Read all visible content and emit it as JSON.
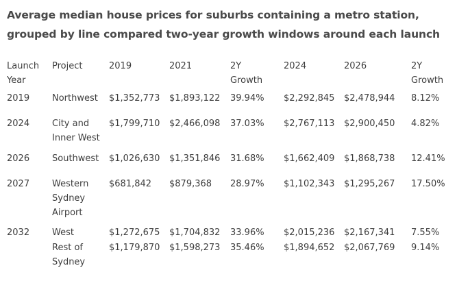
{
  "title": "Average median house prices for suburbs containing a metro station, grouped by line compared two-year growth windows around each launch",
  "header": {
    "launch_year": "Launch Year",
    "project": "Project",
    "y2019": "2019",
    "y2021": "2021",
    "growth1": "2Y Growth",
    "y2024": "2024",
    "y2026": "2026",
    "growth2": "2Y Growth"
  },
  "rows": [
    {
      "launch_year": "2019",
      "project": "Northwest",
      "v2019": "$1,352,773",
      "v2021": "$1,893,122",
      "growth1": "39.94%",
      "v2024": "$2,292,845",
      "v2026": "$2,478,944",
      "growth2": "8.12%"
    },
    {
      "launch_year": "2024",
      "project": "City and Inner West",
      "v2019": "$1,799,710",
      "v2021": "$2,466,098",
      "growth1": "37.03%",
      "v2024": "$2,767,113",
      "v2026": "$2,900,450",
      "growth2": "4.82%"
    },
    {
      "launch_year": "2026",
      "project": "Southwest",
      "v2019": "$1,026,630",
      "v2021": "$1,351,846",
      "growth1": "31.68%",
      "v2024": "$1,662,409",
      "v2026": "$1,868,738",
      "growth2": "12.41%"
    },
    {
      "launch_year": "2027",
      "project": "Western Sydney Airport",
      "v2019": "$681,842",
      "v2021": "$879,368",
      "growth1": "28.97%",
      "v2024": "$1,102,343",
      "v2026": "$1,295,267",
      "growth2": "17.50%"
    },
    {
      "launch_year": "2032",
      "project": "West",
      "v2019": "$1,272,675",
      "v2021": "$1,704,832",
      "growth1": "33.96%",
      "v2024": "$2,015,236",
      "v2026": "$2,167,341",
      "growth2": "7.55%"
    },
    {
      "launch_year": "",
      "project": "Rest of Sydney",
      "v2019": "$1,179,870",
      "v2021": "$1,598,273",
      "growth1": "35.46%",
      "v2024": "$1,894,652",
      "v2026": "$2,067,769",
      "growth2": "9.14%"
    }
  ]
}
